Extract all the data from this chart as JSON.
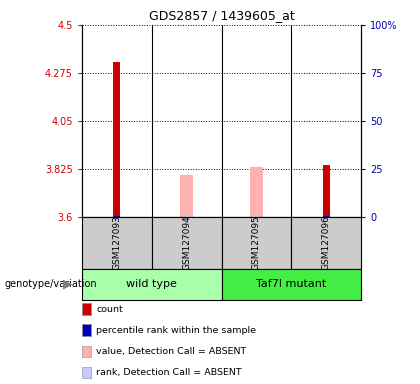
{
  "title": "GDS2857 / 1439605_at",
  "samples": [
    "GSM127093",
    "GSM127094",
    "GSM127095",
    "GSM127096"
  ],
  "group_labels": [
    "wild type",
    "Taf7l mutant"
  ],
  "ylim_left": [
    3.6,
    4.5
  ],
  "ylim_right": [
    0,
    100
  ],
  "yticks_left": [
    3.6,
    3.825,
    4.05,
    4.275,
    4.5
  ],
  "yticks_right": [
    0,
    25,
    50,
    75,
    100
  ],
  "ytick_labels_left": [
    "3.6",
    "3.825",
    "4.05",
    "4.275",
    "4.5"
  ],
  "ytick_labels_right": [
    "0",
    "25",
    "50",
    "75",
    "100%"
  ],
  "red_bars": [
    4.325,
    null,
    null,
    3.845
  ],
  "pink_bars": [
    null,
    3.795,
    3.835,
    null
  ],
  "blue_bars": [
    3.606,
    null,
    null,
    3.606
  ],
  "lavender_bars": [
    null,
    3.603,
    3.603,
    null
  ],
  "colors": {
    "red": "#cc0000",
    "pink": "#ffb0b0",
    "blue": "#0000bb",
    "lavender": "#c8c8ff",
    "group_wt": "#aaffaa",
    "group_mut": "#44ee44",
    "sample_bg": "#cccccc",
    "left_tick": "#cc0000",
    "right_tick": "#0000bb"
  },
  "legend_items": [
    {
      "color": "#cc0000",
      "label": "count"
    },
    {
      "color": "#0000bb",
      "label": "percentile rank within the sample"
    },
    {
      "color": "#ffb0b0",
      "label": "value, Detection Call = ABSENT"
    },
    {
      "color": "#c8c8ff",
      "label": "rank, Detection Call = ABSENT"
    }
  ],
  "genotype_label": "genotype/variation"
}
